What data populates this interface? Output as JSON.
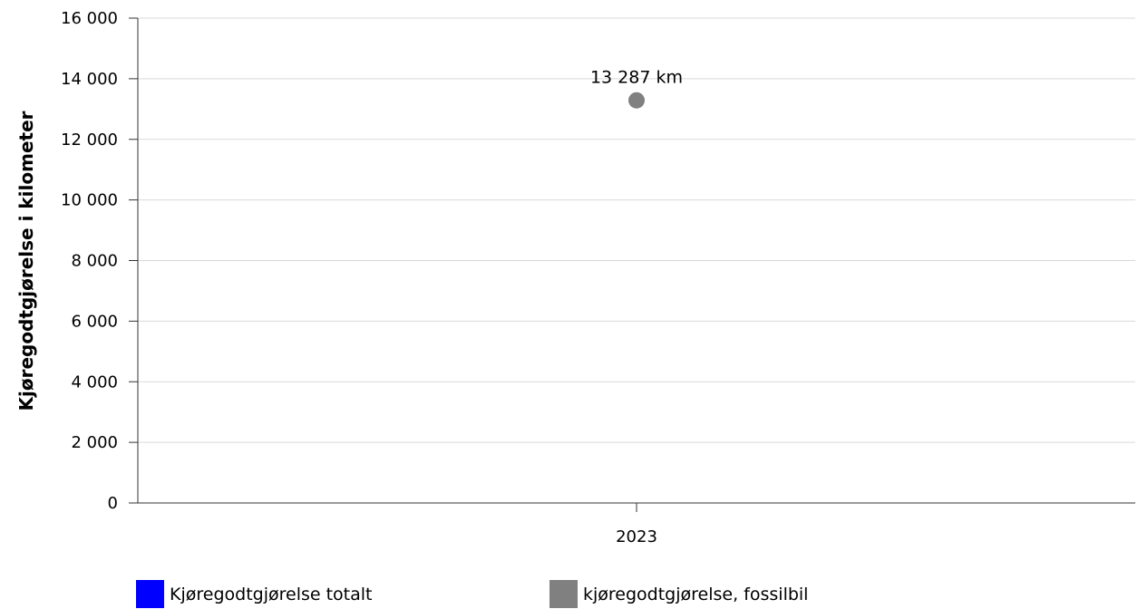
{
  "chart_data": {
    "type": "scatter",
    "ylabel": "Kjøregodtgjørelse i kilometer",
    "ylim": [
      0,
      16000
    ],
    "y_ticks": [
      0,
      2000,
      4000,
      6000,
      8000,
      10000,
      12000,
      14000,
      16000
    ],
    "y_tick_labels": [
      "0",
      "2 000",
      "4 000",
      "6 000",
      "8 000",
      "10 000",
      "12 000",
      "14 000",
      "16 000"
    ],
    "categories": [
      "2023"
    ],
    "grid": "horizontal",
    "legend_position": "bottom",
    "series": [
      {
        "name": "Kjøregodtgjørelse totalt",
        "color": "#0000ff",
        "values": [
          null
        ],
        "data_labels": [
          ""
        ]
      },
      {
        "name": "kjøregodtgjørelse, fossilbil",
        "color": "#808080",
        "values": [
          13287
        ],
        "data_labels": [
          "13 287 km"
        ]
      }
    ]
  }
}
